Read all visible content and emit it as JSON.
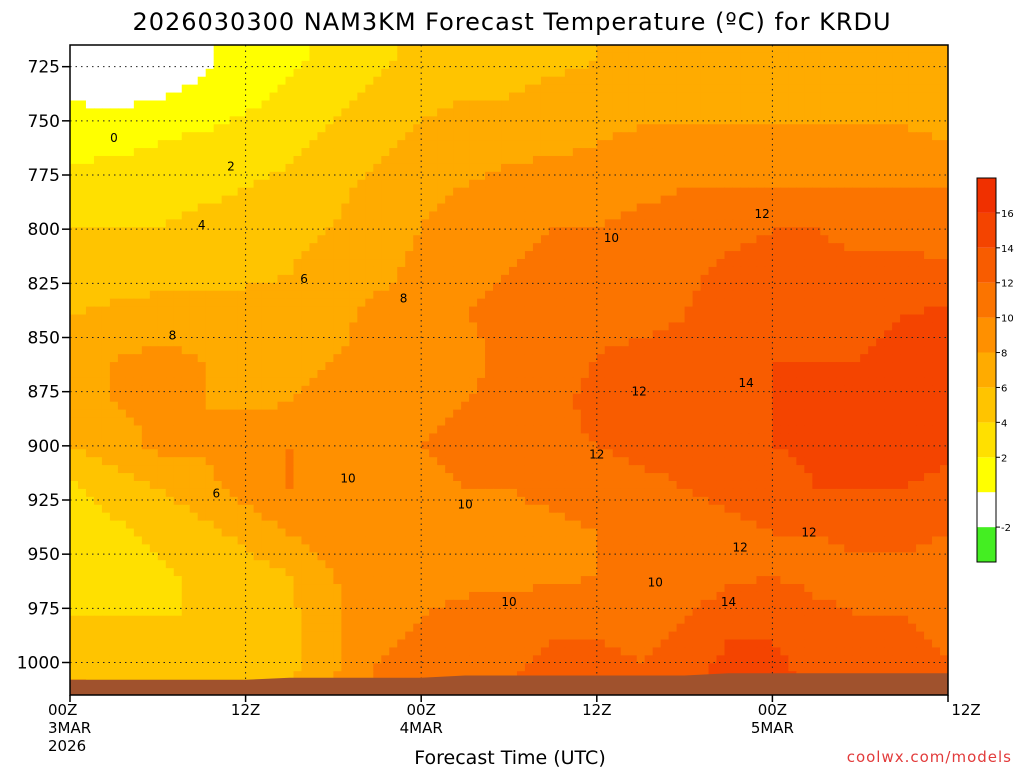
{
  "chart_data": {
    "type": "heatmap",
    "title": "2026030300 NAM3KM Forecast Temperature (ºC) for KRDU",
    "xlabel": "Forecast Time (UTC)",
    "credit": "coolwx.com/models",
    "y_axis": {
      "quantity": "pressure (hPa)",
      "ticks": [
        725,
        750,
        775,
        800,
        825,
        850,
        875,
        900,
        925,
        950,
        975,
        1000
      ],
      "range": [
        715,
        1015
      ],
      "inverted": true
    },
    "x_axis": {
      "range_hours": [
        0,
        60
      ],
      "ticks": [
        {
          "hour": 0,
          "label": "00Z",
          "date": "3MAR",
          "year": "2026"
        },
        {
          "hour": 12,
          "label": "12Z",
          "date": "",
          "year": ""
        },
        {
          "hour": 24,
          "label": "00Z",
          "date": "4MAR",
          "year": ""
        },
        {
          "hour": 36,
          "label": "12Z",
          "date": "",
          "year": ""
        },
        {
          "hour": 48,
          "label": "00Z",
          "date": "5MAR",
          "year": ""
        },
        {
          "hour": 60,
          "label": "12Z",
          "date": "",
          "year": ""
        }
      ]
    },
    "grid": true,
    "colorbar": {
      "placement": "right",
      "levels": [
        -4,
        -2,
        0,
        2,
        4,
        6,
        8,
        10,
        12,
        14,
        16,
        18
      ],
      "tick_labels": [
        "-2",
        "2",
        "4",
        "6",
        "8",
        "10",
        "12",
        "14",
        "16"
      ],
      "tick_values": [
        -2,
        2,
        4,
        6,
        8,
        10,
        12,
        14,
        16
      ],
      "colors": [
        "#44ee22",
        "#ffffff",
        "#ffff00",
        "#ffe000",
        "#ffc400",
        "#ffab00",
        "#ff9000",
        "#fb7400",
        "#f85c00",
        "#f44400",
        "#f03000"
      ]
    },
    "contour_labels": [
      {
        "value": "0",
        "hour": 3.0,
        "p": 758
      },
      {
        "value": "2",
        "hour": 11.0,
        "p": 771
      },
      {
        "value": "4",
        "hour": 9.0,
        "p": 798
      },
      {
        "value": "6",
        "hour": 16.0,
        "p": 823
      },
      {
        "value": "8",
        "hour": 7.0,
        "p": 849
      },
      {
        "value": "8",
        "hour": 22.8,
        "p": 832
      },
      {
        "value": "10",
        "hour": 37.0,
        "p": 804
      },
      {
        "value": "12",
        "hour": 47.3,
        "p": 793
      },
      {
        "value": "12",
        "hour": 38.9,
        "p": 875
      },
      {
        "value": "14",
        "hour": 46.2,
        "p": 871
      },
      {
        "value": "12",
        "hour": 36.0,
        "p": 904
      },
      {
        "value": "6",
        "hour": 10.0,
        "p": 922
      },
      {
        "value": "10",
        "hour": 19.0,
        "p": 915
      },
      {
        "value": "10",
        "hour": 27.0,
        "p": 927
      },
      {
        "value": "12",
        "hour": 50.5,
        "p": 940
      },
      {
        "value": "12",
        "hour": 45.8,
        "p": 947
      },
      {
        "value": "10",
        "hour": 40.0,
        "p": 963
      },
      {
        "value": "10",
        "hour": 30.0,
        "p": 972
      },
      {
        "value": "14",
        "hour": 45.0,
        "p": 972
      }
    ],
    "temperature_grid": {
      "hours": [
        0,
        3,
        6,
        9,
        12,
        15,
        18,
        21,
        24,
        27,
        30,
        33,
        36,
        39,
        42,
        45,
        48,
        51,
        54,
        57,
        60
      ],
      "pressures": [
        720,
        740,
        760,
        780,
        800,
        820,
        840,
        860,
        880,
        900,
        920,
        940,
        960,
        980,
        1000,
        1010
      ],
      "values": [
        [
          -1.0,
          -1.5,
          -1.5,
          -0.5,
          1.0,
          1.5,
          2.5,
          3.5,
          4.5,
          5.0,
          5.5,
          5.5,
          6.0,
          6.0,
          6.5,
          6.5,
          6.5,
          6.5,
          6.5,
          6.0,
          6.0
        ],
        [
          0.0,
          -0.5,
          0.0,
          0.5,
          1.5,
          2.5,
          3.5,
          4.5,
          5.5,
          6.0,
          6.0,
          6.5,
          6.5,
          7.0,
          7.0,
          7.5,
          7.5,
          7.5,
          7.5,
          7.0,
          7.0
        ],
        [
          1.5,
          1.5,
          2.0,
          2.5,
          3.0,
          3.5,
          4.5,
          5.5,
          6.5,
          7.0,
          7.5,
          7.5,
          8.0,
          8.5,
          8.5,
          8.5,
          8.5,
          8.5,
          8.5,
          8.5,
          8.0
        ],
        [
          2.5,
          3.0,
          3.0,
          3.5,
          4.0,
          4.5,
          5.5,
          6.5,
          7.5,
          8.0,
          8.5,
          9.0,
          9.0,
          9.5,
          10.0,
          10.0,
          10.0,
          10.0,
          10.0,
          10.0,
          10.0
        ],
        [
          4.0,
          4.0,
          4.0,
          4.5,
          4.5,
          5.5,
          6.0,
          7.0,
          8.0,
          9.0,
          9.5,
          10.0,
          10.0,
          10.5,
          11.0,
          11.5,
          12.0,
          12.0,
          11.5,
          11.5,
          11.0
        ],
        [
          5.0,
          5.0,
          5.0,
          5.5,
          5.5,
          6.0,
          7.0,
          7.5,
          8.5,
          9.5,
          10.0,
          10.5,
          11.0,
          11.0,
          11.5,
          12.5,
          12.5,
          12.5,
          12.5,
          12.5,
          12.5
        ],
        [
          6.0,
          6.5,
          7.0,
          7.0,
          7.0,
          7.0,
          7.5,
          8.5,
          9.0,
          10.0,
          10.5,
          11.0,
          11.5,
          11.5,
          12.0,
          13.0,
          13.5,
          13.5,
          13.5,
          14.0,
          14.5
        ],
        [
          7.0,
          8.0,
          8.5,
          8.0,
          7.5,
          7.5,
          8.0,
          8.5,
          9.0,
          9.5,
          10.5,
          11.5,
          12.0,
          12.5,
          12.5,
          13.5,
          14.0,
          14.0,
          14.0,
          14.5,
          14.5
        ],
        [
          7.0,
          8.0,
          8.5,
          8.0,
          7.5,
          8.0,
          8.5,
          9.0,
          9.5,
          10.0,
          10.5,
          11.5,
          12.5,
          12.5,
          12.5,
          13.5,
          14.0,
          14.5,
          14.5,
          14.5,
          14.5
        ],
        [
          6.0,
          7.0,
          8.5,
          8.5,
          9.5,
          10.0,
          9.5,
          9.5,
          10.0,
          10.5,
          10.5,
          11.5,
          12.0,
          12.5,
          12.5,
          13.5,
          14.0,
          14.5,
          14.5,
          14.5,
          14.5
        ],
        [
          3.5,
          5.0,
          6.0,
          7.0,
          9.0,
          10.0,
          9.5,
          9.5,
          9.5,
          10.0,
          10.0,
          10.5,
          11.0,
          11.5,
          12.0,
          12.5,
          13.0,
          14.0,
          14.0,
          14.0,
          13.5
        ],
        [
          2.5,
          3.5,
          4.5,
          5.5,
          6.5,
          8.0,
          9.0,
          9.5,
          9.5,
          9.5,
          9.5,
          9.5,
          10.0,
          10.5,
          11.0,
          11.5,
          12.0,
          12.0,
          12.5,
          12.5,
          12.0
        ],
        [
          3.0,
          3.0,
          3.5,
          4.5,
          5.0,
          6.0,
          8.0,
          9.0,
          9.5,
          9.5,
          9.5,
          9.5,
          10.0,
          10.0,
          10.5,
          11.5,
          12.0,
          11.5,
          11.5,
          11.5,
          11.0
        ],
        [
          4.0,
          4.0,
          4.0,
          4.0,
          4.5,
          5.5,
          7.5,
          9.5,
          10.0,
          10.5,
          11.0,
          11.5,
          11.5,
          11.0,
          12.0,
          13.5,
          13.5,
          12.5,
          12.0,
          12.0,
          11.5
        ],
        [
          5.5,
          4.5,
          4.0,
          4.0,
          4.5,
          5.5,
          7.5,
          10.0,
          10.5,
          11.0,
          11.5,
          12.5,
          12.5,
          12.0,
          13.0,
          14.5,
          14.5,
          13.0,
          12.5,
          12.5,
          12.0
        ],
        [
          6.5,
          5.5,
          5.0,
          5.0,
          5.0,
          6.0,
          8.0,
          10.5,
          11.0,
          11.5,
          12.0,
          13.0,
          13.0,
          12.5,
          13.5,
          15.0,
          15.0,
          13.5,
          13.0,
          13.0,
          12.5
        ]
      ]
    },
    "terrain": {
      "color": "#a0522d",
      "surface_pressure_by_hour": [
        1008,
        1008,
        1008,
        1008,
        1008,
        1007,
        1007,
        1007,
        1007,
        1006,
        1006,
        1006,
        1006,
        1006,
        1006,
        1005,
        1005,
        1005,
        1005,
        1005,
        1005
      ]
    }
  }
}
